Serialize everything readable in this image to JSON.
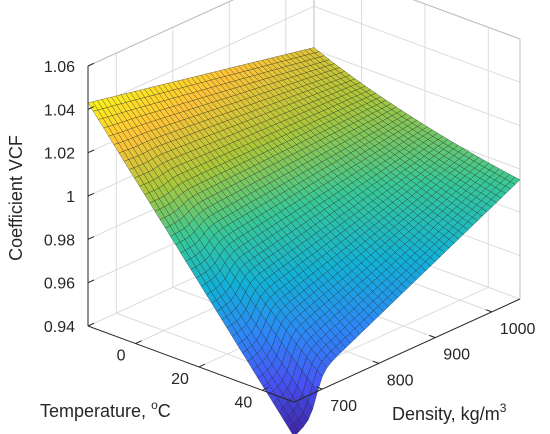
{
  "chart_data": {
    "type": "surface",
    "xlabel": "Density, kg/m",
    "xlabel_sup": "3",
    "ylabel": "Temperature, ",
    "ylabel_sup": "o",
    "ylabel_suffix": "C",
    "zlabel": "Coefficient VCF",
    "x_ticks": [
      "700",
      "800",
      "900",
      "1000"
    ],
    "y_ticks": [
      "0",
      "20",
      "40"
    ],
    "z_ticks": [
      "0.94",
      "0.96",
      "0.98",
      "1",
      "1.02",
      "1.04",
      "1.06"
    ],
    "x_range": [
      650,
      1050
    ],
    "y_range": [
      -15,
      50
    ],
    "z_range": [
      0.94,
      1.06
    ],
    "grid": true,
    "colormap": "parula",
    "corners": [
      {
        "density": 650,
        "temperature": -15,
        "vcf": 1.043
      },
      {
        "density": 1050,
        "temperature": -15,
        "vcf": 1.021
      },
      {
        "density": 650,
        "temperature": 50,
        "vcf": 0.924
      },
      {
        "density": 1050,
        "temperature": 50,
        "vcf": 0.977
      }
    ],
    "features": [
      {
        "description_value": "step",
        "density": 690,
        "temperature": 50,
        "vcf_before": 0.929,
        "vcf_after": 0.947
      }
    ]
  }
}
